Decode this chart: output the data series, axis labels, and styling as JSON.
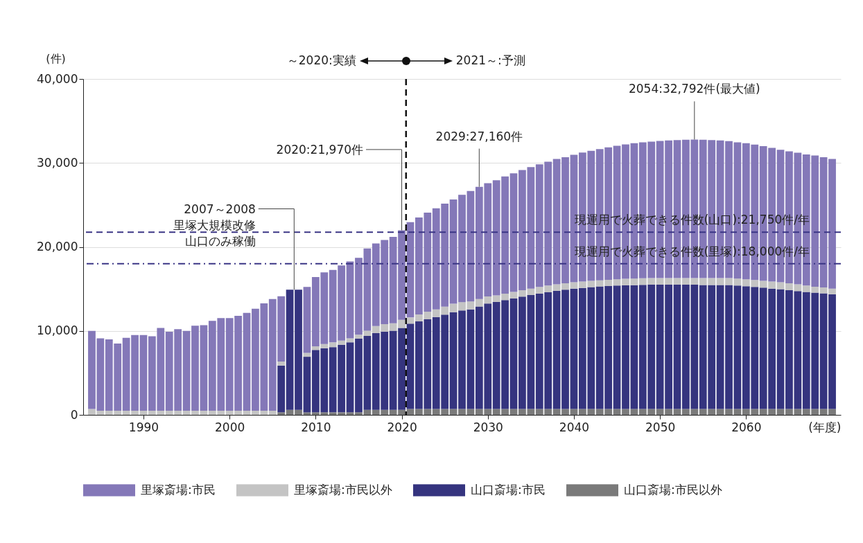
{
  "chart_data": {
    "type": "bar",
    "stacked": true,
    "xlabel": "(年度)",
    "ylabel": "(件)",
    "x": [
      1984,
      1985,
      1986,
      1987,
      1988,
      1989,
      1990,
      1991,
      1992,
      1993,
      1994,
      1995,
      1996,
      1997,
      1998,
      1999,
      2000,
      2001,
      2002,
      2003,
      2004,
      2005,
      2006,
      2007,
      2008,
      2009,
      2010,
      2011,
      2012,
      2013,
      2014,
      2015,
      2016,
      2017,
      2018,
      2019,
      2020,
      2021,
      2022,
      2023,
      2024,
      2025,
      2026,
      2027,
      2028,
      2029,
      2030,
      2031,
      2032,
      2033,
      2034,
      2035,
      2036,
      2037,
      2038,
      2039,
      2040,
      2041,
      2042,
      2043,
      2044,
      2045,
      2046,
      2047,
      2048,
      2049,
      2050,
      2051,
      2052,
      2053,
      2054,
      2055,
      2056,
      2057,
      2058,
      2059,
      2060,
      2061,
      2062,
      2063,
      2064,
      2065,
      2066,
      2067,
      2068,
      2069,
      2070
    ],
    "series": [
      {
        "name": "山口斎場:市民以外",
        "color": "#7a7a7a",
        "values": [
          0,
          0,
          0,
          0,
          0,
          0,
          0,
          0,
          0,
          0,
          0,
          0,
          0,
          0,
          0,
          0,
          0,
          0,
          0,
          0,
          0,
          0,
          300,
          600,
          600,
          300,
          300,
          300,
          300,
          300,
          300,
          300,
          600,
          600,
          600,
          600,
          600,
          700,
          700,
          700,
          700,
          700,
          700,
          700,
          700,
          700,
          700,
          700,
          700,
          700,
          700,
          700,
          700,
          700,
          700,
          700,
          700,
          700,
          700,
          700,
          700,
          700,
          700,
          700,
          700,
          700,
          700,
          700,
          700,
          700,
          700,
          700,
          700,
          700,
          700,
          700,
          700,
          700,
          700,
          700,
          700,
          700,
          700,
          700,
          700,
          700,
          700
        ]
      },
      {
        "name": "山口斎場:市民",
        "color": "#35347f",
        "values": [
          0,
          0,
          0,
          0,
          0,
          0,
          0,
          0,
          0,
          0,
          0,
          0,
          0,
          0,
          0,
          0,
          0,
          0,
          0,
          0,
          0,
          0,
          5570,
          14310,
          14310,
          6620,
          7440,
          7640,
          7770,
          8050,
          8330,
          8770,
          8800,
          9150,
          9290,
          9430,
          9760,
          10160,
          10430,
          10680,
          10950,
          11230,
          11530,
          11730,
          11860,
          12200,
          12560,
          12750,
          12970,
          13160,
          13380,
          13570,
          13740,
          13900,
          14070,
          14210,
          14340,
          14420,
          14510,
          14590,
          14640,
          14700,
          14730,
          14750,
          14780,
          14810,
          14810,
          14810,
          14810,
          14810,
          14810,
          14760,
          14760,
          14760,
          14760,
          14700,
          14620,
          14540,
          14450,
          14340,
          14260,
          14150,
          14040,
          13930,
          13850,
          13770,
          13660
        ]
      },
      {
        "name": "里塚斎場:市民以外",
        "color": "#c4c4c4",
        "values": [
          700,
          500,
          500,
          500,
          500,
          500,
          500,
          500,
          500,
          500,
          500,
          500,
          500,
          500,
          500,
          500,
          500,
          500,
          500,
          500,
          500,
          500,
          490,
          0,
          0,
          470,
          420,
          490,
          560,
          490,
          490,
          470,
          630,
          830,
          910,
          880,
          960,
          740,
          830,
          910,
          910,
          960,
          1000,
          1000,
          950,
          900,
          850,
          770,
          770,
          770,
          770,
          770,
          800,
          800,
          770,
          770,
          750,
          750,
          740,
          740,
          750,
          750,
          770,
          780,
          780,
          770,
          770,
          770,
          770,
          770,
          770,
          820,
          820,
          820,
          820,
          830,
          830,
          820,
          800,
          830,
          830,
          830,
          800,
          770,
          710,
          710,
          680
        ]
      },
      {
        "name": "里塚斎場:市民",
        "color": "#8478b8",
        "values": [
          9300,
          8620,
          8480,
          7990,
          8670,
          9000,
          9000,
          8870,
          9860,
          9390,
          9700,
          9500,
          10110,
          10190,
          10690,
          11020,
          11020,
          11290,
          11650,
          12140,
          12780,
          13300,
          7770,
          0,
          0,
          7850,
          8260,
          8540,
          8620,
          8960,
          9140,
          9170,
          9780,
          9830,
          10030,
          10280,
          10650,
          11350,
          11540,
          11790,
          12040,
          12270,
          12420,
          12770,
          13160,
          13360,
          13470,
          13710,
          13960,
          14130,
          14300,
          14460,
          14600,
          14740,
          14930,
          15010,
          15180,
          15370,
          15490,
          15620,
          15760,
          15890,
          16010,
          16120,
          16190,
          16260,
          16340,
          16400,
          16450,
          16480,
          16512,
          16480,
          16450,
          16400,
          16320,
          16220,
          16200,
          16120,
          16040,
          15920,
          15780,
          15700,
          15670,
          15620,
          15620,
          15510,
          15430
        ]
      }
    ],
    "xlim": [
      1983.4,
      2070.6
    ],
    "xticks": [
      1990,
      2000,
      2010,
      2020,
      2030,
      2040,
      2050,
      2060
    ],
    "ylim": [
      0,
      40000
    ],
    "yticks": [
      {
        "value": 0,
        "label": "0"
      },
      {
        "value": 10000,
        "label": "10,000"
      },
      {
        "value": 20000,
        "label": "20,000"
      },
      {
        "value": 30000,
        "label": "30,000"
      },
      {
        "value": 40000,
        "label": "40,000"
      }
    ],
    "grid": "y",
    "legend": "bottom",
    "ref_lines": [
      {
        "axis": "x",
        "value": 2020.5,
        "label": null,
        "color": "#111111",
        "line_style": "dashed"
      },
      {
        "axis": "y",
        "value": 21750,
        "label": "現運用で火葬できる件数(山口):21,750件/年",
        "color": "#3a3585",
        "line_style": "dashed"
      },
      {
        "axis": "y",
        "value": 18000,
        "label": "現運用で火葬できる件数(里塚):18,000件/年",
        "color": "#3a3585",
        "line_style": "dashdot"
      }
    ],
    "annotations": [
      "～2020:実績",
      "2021～:予測",
      {
        "text": "2007～2008\n里塚大規模改修山口のみ稼働",
        "x": 2007.5,
        "y": 14910
      },
      {
        "text": "2020:21,970件",
        "x": 2020,
        "y": 21970
      },
      {
        "text": "2029:27,160件",
        "x": 2029,
        "y": 27160
      },
      {
        "text": "2054:32,792件(最大値)",
        "x": 2054,
        "y": 32792
      }
    ]
  }
}
